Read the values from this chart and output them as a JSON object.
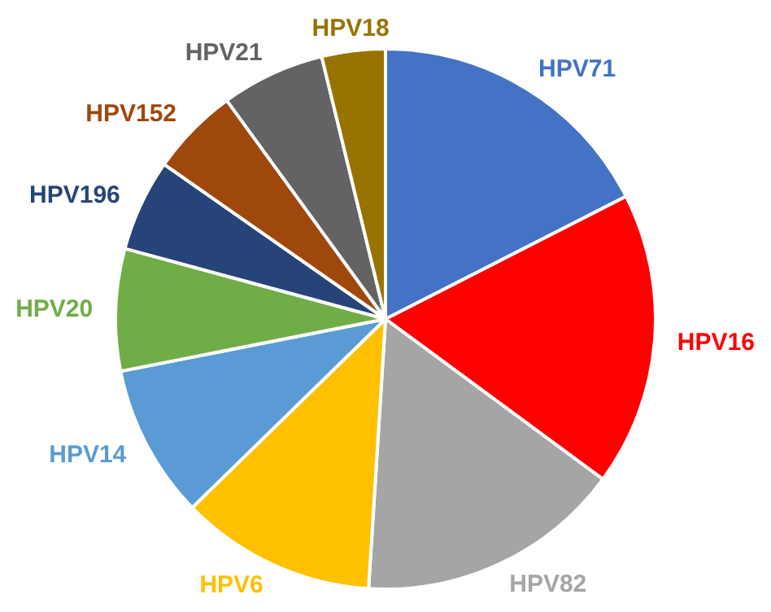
{
  "chart_data": {
    "type": "pie",
    "categories": [
      "HPV71",
      "HPV16",
      "HPV82",
      "HPV6",
      "HPV14",
      "HPV20",
      "HPV196",
      "HPV152",
      "HPV21",
      "HPV18"
    ],
    "values": [
      17.5,
      17.6,
      15.9,
      11.7,
      9.2,
      7.3,
      5.5,
      5.3,
      6.2,
      3.8
    ],
    "colors": [
      "#4472c4",
      "#ff0000",
      "#a5a5a5",
      "#ffc000",
      "#5b9bd5",
      "#70ad47",
      "#264478",
      "#9e480e",
      "#636363",
      "#997300"
    ],
    "legend": false
  }
}
